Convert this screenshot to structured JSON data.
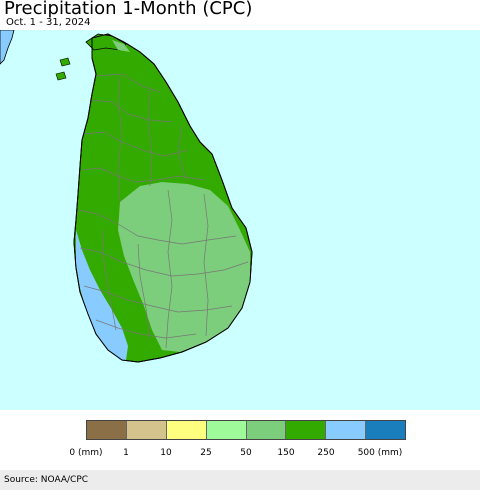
{
  "title": "Precipitation 1-Month (CPC)",
  "subtitle": "Oct. 1 - 31, 2024",
  "map": {
    "region": "Sri Lanka",
    "colors": {
      "ocean": "#ccffff",
      "class_150_250": "#33aa00",
      "class_50_150": "#7ccd7c",
      "class_250_500": "#88ccff",
      "boundary": "#777777",
      "coastline": "#000000"
    }
  },
  "legend": {
    "colors": [
      "#8b6f47",
      "#d4c38c",
      "#ffff7f",
      "#9ffa9a",
      "#7ccd7c",
      "#33aa00",
      "#88ccff",
      "#1a7ebd"
    ],
    "labels": [
      "0 (mm)",
      "1",
      "10",
      "25",
      "50",
      "150",
      "250",
      "500 (mm)"
    ]
  },
  "source": "Source: NOAA/CPC"
}
